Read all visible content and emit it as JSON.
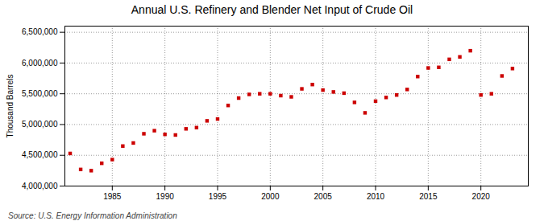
{
  "chart_data": {
    "type": "scatter",
    "title": "Annual U.S. Refinery and Blender Net Input of Crude Oil",
    "ylabel": "Thousand Barrels",
    "source": "Source: U.S. Energy Information Administration",
    "x": [
      1981,
      1982,
      1983,
      1984,
      1985,
      1986,
      1987,
      1988,
      1989,
      1990,
      1991,
      1992,
      1993,
      1994,
      1995,
      1996,
      1997,
      1998,
      1999,
      2000,
      2001,
      2002,
      2003,
      2004,
      2005,
      2006,
      2007,
      2008,
      2009,
      2010,
      2011,
      2012,
      2013,
      2014,
      2015,
      2016,
      2017,
      2018,
      2019,
      2020,
      2021,
      2022,
      2023
    ],
    "values": [
      4530000,
      4270000,
      4250000,
      4370000,
      4430000,
      4650000,
      4700000,
      4850000,
      4900000,
      4840000,
      4830000,
      4930000,
      4950000,
      5060000,
      5090000,
      5310000,
      5430000,
      5490000,
      5500000,
      5500000,
      5470000,
      5450000,
      5580000,
      5650000,
      5560000,
      5530000,
      5510000,
      5360000,
      5190000,
      5380000,
      5440000,
      5480000,
      5570000,
      5780000,
      5920000,
      5930000,
      6060000,
      6100000,
      6200000,
      5480000,
      5500000,
      5790000,
      5910000
    ],
    "color": "#cc0000",
    "marker": "square",
    "xlim": [
      1980.5,
      2024.5
    ],
    "xticks": [
      1985,
      1990,
      1995,
      2000,
      2005,
      2010,
      2015,
      2020
    ],
    "ylim": [
      4000000,
      6600000
    ],
    "yticks": [
      {
        "value": 4000000,
        "label": "4,000,000"
      },
      {
        "value": 4500000,
        "label": "4,500,000"
      },
      {
        "value": 5000000,
        "label": "5,000,000"
      },
      {
        "value": 5500000,
        "label": "5,500,000"
      },
      {
        "value": 6000000,
        "label": "6,000,000"
      },
      {
        "value": 6500000,
        "label": "6,500,000"
      }
    ],
    "grid": true
  }
}
